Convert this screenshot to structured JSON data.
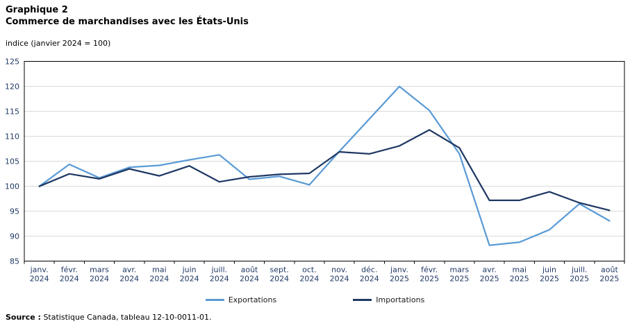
{
  "header": {
    "title_line1": "Graphique 2",
    "title_line2": "Commerce de marchandises avec les États-Unis",
    "subtitle": "indice (janvier 2024 = 100)"
  },
  "legend": {
    "items": [
      {
        "label": "Exportations",
        "color": "#5B9BD5"
      },
      {
        "label": "Importations",
        "color": "#1F3864"
      }
    ]
  },
  "source": {
    "prefix": "Source :",
    "text": " Statistique Canada, tableau 12-10-0011-01."
  },
  "colors": {
    "exportations": "#5B9BD5",
    "importations": "#1F3864",
    "gridline": "#D9D9D9",
    "axis": "#000000",
    "tick_label": "#1F3864"
  },
  "chart_data": {
    "type": "line",
    "title": "Commerce de marchandises avec les États-Unis",
    "ylabel": "indice (janvier 2024 = 100)",
    "xlabel": "",
    "ylim": [
      85,
      125
    ],
    "ytick_step": 5,
    "grid": true,
    "legend_position": "bottom",
    "categories": [
      "janv. 2024",
      "févr. 2024",
      "mars 2024",
      "avr. 2024",
      "mai 2024",
      "juin 2024",
      "juill. 2024",
      "août 2024",
      "sept. 2024",
      "oct. 2024",
      "nov. 2024",
      "déc. 2024",
      "janv. 2025",
      "févr. 2025",
      "mars 2025",
      "avr. 2025",
      "mai 2025",
      "juin 2025",
      "juill. 2025",
      "août 2025"
    ],
    "series": [
      {
        "name": "Exportations",
        "color": "#5B9BD5",
        "values": [
          100.0,
          104.4,
          101.7,
          103.8,
          104.2,
          105.3,
          106.3,
          101.4,
          102.0,
          100.3,
          107.0,
          113.5,
          120.0,
          115.2,
          106.5,
          88.2,
          88.8,
          91.3,
          96.5,
          93.1
        ]
      },
      {
        "name": "Importations",
        "color": "#1F3864",
        "values": [
          100.0,
          102.5,
          101.5,
          103.5,
          102.1,
          104.1,
          100.9,
          101.9,
          102.4,
          102.6,
          106.9,
          106.5,
          108.1,
          111.3,
          107.7,
          97.2,
          97.2,
          98.9,
          96.7,
          95.2
        ]
      }
    ]
  }
}
